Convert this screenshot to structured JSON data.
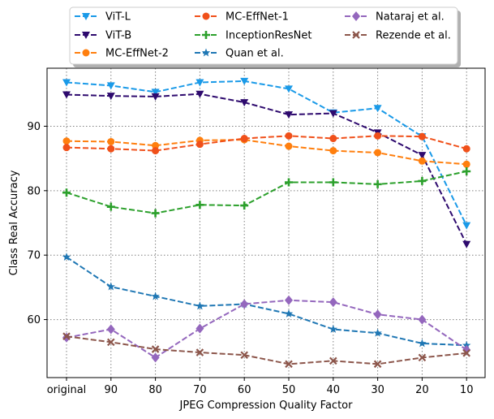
{
  "chart_data": {
    "type": "line",
    "xlabel": "JPEG Compression Quality Factor",
    "ylabel": "Class Real Accuracy",
    "categories": [
      "original",
      "90",
      "80",
      "70",
      "60",
      "50",
      "40",
      "30",
      "20",
      "10"
    ],
    "yticks": [
      60,
      70,
      80,
      90
    ],
    "ylim": [
      51,
      99
    ],
    "grid": true,
    "grid_style": "dotted",
    "legend_placement": "top, outside plot, 3 columns",
    "series": [
      {
        "name": "ViT-L",
        "color": "#1a9ae8",
        "marker": "triangle-down",
        "values": [
          96.8,
          96.3,
          95.3,
          96.8,
          97.0,
          95.8,
          92.1,
          92.8,
          88.4,
          74.6
        ]
      },
      {
        "name": "ViT-B",
        "color": "#2e0a6e",
        "marker": "triangle-down",
        "values": [
          94.9,
          94.7,
          94.6,
          95.0,
          93.7,
          91.8,
          92.0,
          89.0,
          85.5,
          71.7
        ]
      },
      {
        "name": "MC-EffNet-2",
        "color": "#ff7f0e",
        "marker": "circle",
        "values": [
          87.7,
          87.6,
          87.0,
          87.8,
          87.9,
          86.9,
          86.2,
          85.9,
          84.6,
          84.1
        ]
      },
      {
        "name": "MC-EffNet-1",
        "color": "#f0501a",
        "marker": "circle",
        "values": [
          86.7,
          86.5,
          86.2,
          87.2,
          88.1,
          88.5,
          88.1,
          88.5,
          88.4,
          86.5
        ]
      },
      {
        "name": "InceptionResNet",
        "color": "#2ca02c",
        "marker": "plus",
        "values": [
          79.7,
          77.5,
          76.5,
          77.8,
          77.7,
          81.3,
          81.3,
          81.0,
          81.5,
          83.0
        ]
      },
      {
        "name": "Quan et al.",
        "color": "#1f77b4",
        "marker": "star",
        "values": [
          69.7,
          65.1,
          63.6,
          62.1,
          62.4,
          60.9,
          58.5,
          57.9,
          56.3,
          56.0
        ]
      },
      {
        "name": "Nataraj et al.",
        "color": "#9467bd",
        "marker": "diamond",
        "values": [
          57.2,
          58.5,
          54.1,
          58.6,
          62.4,
          63.0,
          62.7,
          60.8,
          60.0,
          55.3
        ]
      },
      {
        "name": "Rezende et al.",
        "color": "#8c564b",
        "marker": "x",
        "values": [
          57.4,
          56.5,
          55.4,
          54.9,
          54.5,
          53.1,
          53.6,
          53.1,
          54.1,
          54.8
        ]
      }
    ]
  }
}
